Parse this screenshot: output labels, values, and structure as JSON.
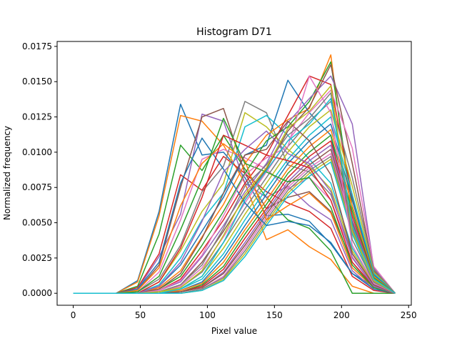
{
  "chart_data": {
    "type": "line",
    "title": "Histogram D71",
    "xlabel": "Pixel value",
    "ylabel": "Normalized frequency",
    "xlim": [
      -12,
      252
    ],
    "ylim": [
      -0.00085,
      0.01785
    ],
    "x_ticks": [
      0,
      50,
      100,
      150,
      200,
      250
    ],
    "x_tick_labels": [
      "0",
      "50",
      "100",
      "150",
      "200",
      "250"
    ],
    "y_ticks": [
      0.0,
      0.0025,
      0.005,
      0.0075,
      0.01,
      0.0125,
      0.015,
      0.0175
    ],
    "y_tick_labels": [
      "0.0000",
      "0.0025",
      "0.0050",
      "0.0075",
      "0.0100",
      "0.0125",
      "0.0150",
      "0.0175"
    ],
    "grid": false,
    "legend": "none",
    "x": [
      0,
      16,
      32,
      48,
      64,
      80,
      96,
      112,
      128,
      144,
      160,
      176,
      192,
      208,
      224,
      240
    ],
    "colors": [
      "#1f77b4",
      "#ff7f0e",
      "#2ca02c",
      "#d62728",
      "#9467bd",
      "#8c564b",
      "#e377c2",
      "#7f7f7f",
      "#bcbd22",
      "#17becf"
    ],
    "series": [
      {
        "values": [
          0,
          0,
          0,
          0.0009,
          0.0058,
          0.0134,
          0.0098,
          0.01,
          0.0082,
          0.0055,
          0.0056,
          0.0051,
          0.0035,
          0.0014,
          0.0005,
          0
        ]
      },
      {
        "values": [
          0,
          0,
          0,
          0.0008,
          0.0055,
          0.0126,
          0.0122,
          0.0105,
          0.0078,
          0.0038,
          0.0045,
          0.0033,
          0.0024,
          0.0005,
          0,
          0
        ]
      },
      {
        "values": [
          0,
          0,
          0,
          0.0005,
          0.0042,
          0.0105,
          0.0087,
          0.0112,
          0.0088,
          0.0068,
          0.0052,
          0.0046,
          0.003,
          0,
          0,
          0
        ]
      },
      {
        "values": [
          0,
          0,
          0,
          0.0004,
          0.0028,
          0.0084,
          0.0073,
          0.0097,
          0.0085,
          0.0072,
          0.0064,
          0.0058,
          0.0046,
          0.0012,
          0.0002,
          0
        ]
      },
      {
        "values": [
          0,
          0,
          0,
          0.0003,
          0.0026,
          0.0056,
          0.0127,
          0.0122,
          0.0078,
          0.0068,
          0.0076,
          0.0062,
          0.0052,
          0.0016,
          0.0003,
          0
        ]
      },
      {
        "values": [
          0,
          0,
          0,
          0.0002,
          0.002,
          0.0075,
          0.0125,
          0.0131,
          0.0085,
          0.006,
          0.0068,
          0.0072,
          0.0058,
          0.0022,
          0.0004,
          0
        ]
      },
      {
        "values": [
          0,
          0,
          0,
          0.0001,
          0.0015,
          0.0052,
          0.0095,
          0.0102,
          0.0096,
          0.0088,
          0.0074,
          0.0082,
          0.0066,
          0.0026,
          0.0005,
          0
        ]
      },
      {
        "values": [
          0,
          0,
          0,
          0.0001,
          0.001,
          0.0034,
          0.0072,
          0.009,
          0.0136,
          0.0128,
          0.0091,
          0.0086,
          0.007,
          0.0028,
          0.0006,
          0
        ]
      },
      {
        "values": [
          0,
          0,
          0,
          0,
          0.0008,
          0.003,
          0.0058,
          0.0078,
          0.0128,
          0.0118,
          0.0102,
          0.009,
          0.0074,
          0.003,
          0.0007,
          0
        ]
      },
      {
        "values": [
          0,
          0,
          0,
          0,
          0.0006,
          0.0025,
          0.0052,
          0.0071,
          0.0118,
          0.0126,
          0.0112,
          0.0095,
          0.0078,
          0.0032,
          0.0008,
          0
        ]
      },
      {
        "values": [
          0,
          0,
          0,
          0,
          0.0005,
          0.002,
          0.0044,
          0.0068,
          0.0098,
          0.0105,
          0.0151,
          0.0128,
          0.0112,
          0.0042,
          0.001,
          0
        ]
      },
      {
        "values": [
          0,
          0,
          0,
          0,
          0.0004,
          0.0016,
          0.004,
          0.0063,
          0.0092,
          0.0112,
          0.0123,
          0.0131,
          0.0169,
          0.0052,
          0.0012,
          0
        ]
      },
      {
        "values": [
          0,
          0,
          0,
          0,
          0.0003,
          0.0012,
          0.0034,
          0.0058,
          0.0085,
          0.0108,
          0.0118,
          0.0136,
          0.0164,
          0.0061,
          0.0014,
          0
        ]
      },
      {
        "values": [
          0,
          0,
          0,
          0,
          0.0002,
          0.001,
          0.003,
          0.0052,
          0.0078,
          0.0098,
          0.0126,
          0.0154,
          0.0148,
          0.0068,
          0.0015,
          0
        ]
      },
      {
        "values": [
          0,
          0,
          0,
          0,
          0.0002,
          0.0008,
          0.0026,
          0.0048,
          0.0072,
          0.0092,
          0.0121,
          0.0138,
          0.0154,
          0.012,
          0.0018,
          0
        ]
      },
      {
        "values": [
          0,
          0,
          0,
          0,
          0.0001,
          0.0006,
          0.0022,
          0.0044,
          0.0068,
          0.0088,
          0.0115,
          0.0132,
          0.0162,
          0.0092,
          0.0016,
          0
        ]
      },
      {
        "values": [
          0,
          0,
          0,
          0,
          0.0001,
          0.0005,
          0.0018,
          0.004,
          0.0064,
          0.0086,
          0.0108,
          0.0128,
          0.0144,
          0.0103,
          0.0019,
          0
        ]
      },
      {
        "values": [
          0,
          0,
          0,
          0,
          0.0001,
          0.0004,
          0.0015,
          0.0036,
          0.006,
          0.0082,
          0.0104,
          0.0122,
          0.0136,
          0.0082,
          0.0017,
          0
        ]
      },
      {
        "values": [
          0,
          0,
          0,
          0,
          0.0001,
          0.0003,
          0.0012,
          0.0032,
          0.0056,
          0.0078,
          0.01,
          0.0118,
          0.013,
          0.0076,
          0.0015,
          0
        ]
      },
      {
        "values": [
          0,
          0,
          0,
          0,
          0,
          0.0003,
          0.001,
          0.0028,
          0.0052,
          0.0074,
          0.0095,
          0.0112,
          0.0125,
          0.007,
          0.0014,
          0
        ]
      },
      {
        "values": [
          0,
          0,
          0,
          0,
          0,
          0.0002,
          0.0008,
          0.0025,
          0.0048,
          0.007,
          0.0092,
          0.0108,
          0.012,
          0.0066,
          0.0013,
          0
        ]
      },
      {
        "values": [
          0,
          0,
          0,
          0,
          0,
          0.0002,
          0.0007,
          0.0022,
          0.0045,
          0.0066,
          0.0088,
          0.0104,
          0.0116,
          0.0062,
          0.0012,
          0
        ]
      },
      {
        "values": [
          0,
          0,
          0,
          0,
          0,
          0.0001,
          0.0006,
          0.0019,
          0.0042,
          0.0063,
          0.0085,
          0.01,
          0.0112,
          0.0058,
          0.0011,
          0
        ]
      },
      {
        "values": [
          0,
          0,
          0,
          0,
          0,
          0.0001,
          0.0005,
          0.0017,
          0.0039,
          0.006,
          0.0082,
          0.0097,
          0.0108,
          0.0055,
          0.001,
          0
        ]
      },
      {
        "values": [
          0,
          0,
          0,
          0,
          0,
          0.0001,
          0.0004,
          0.0015,
          0.0036,
          0.0058,
          0.0079,
          0.0094,
          0.0105,
          0.0052,
          0.001,
          0
        ]
      },
      {
        "values": [
          0,
          0,
          0,
          0,
          0,
          0.0001,
          0.0004,
          0.0014,
          0.0034,
          0.0056,
          0.0077,
          0.0091,
          0.0102,
          0.005,
          0.0009,
          0
        ]
      },
      {
        "values": [
          0,
          0,
          0,
          0,
          0,
          0,
          0.0003,
          0.0012,
          0.0032,
          0.0054,
          0.0075,
          0.0089,
          0.0099,
          0.0048,
          0.0009,
          0
        ]
      },
      {
        "values": [
          0,
          0,
          0,
          0,
          0,
          0,
          0.0003,
          0.0011,
          0.003,
          0.0052,
          0.0073,
          0.0087,
          0.0097,
          0.0046,
          0.0008,
          0
        ]
      },
      {
        "values": [
          0,
          0,
          0,
          0,
          0,
          0,
          0.0002,
          0.001,
          0.0028,
          0.005,
          0.0071,
          0.0085,
          0.0095,
          0.0044,
          0.0008,
          0
        ]
      },
      {
        "values": [
          0,
          0,
          0,
          0,
          0,
          0,
          0.0002,
          0.0009,
          0.0026,
          0.0048,
          0.0069,
          0.0083,
          0.0093,
          0.0042,
          0.0007,
          0
        ]
      },
      {
        "values": [
          0,
          0,
          0,
          0.0003,
          0.0022,
          0.0078,
          0.011,
          0.0088,
          0.0064,
          0.0048,
          0.0051,
          0.0048,
          0.0036,
          0.0014,
          0.0003,
          0
        ]
      },
      {
        "values": [
          0,
          0,
          0,
          0.0002,
          0.0018,
          0.0062,
          0.0092,
          0.0106,
          0.0094,
          0.0052,
          0.0062,
          0.0071,
          0.0057,
          0.0018,
          0.0004,
          0
        ]
      },
      {
        "values": [
          0,
          0,
          0,
          0.0001,
          0.0012,
          0.0045,
          0.0081,
          0.0124,
          0.0092,
          0.0086,
          0.0079,
          0.0082,
          0.0061,
          0.002,
          0.0004,
          0
        ]
      },
      {
        "values": [
          0,
          0,
          0,
          0,
          0.0008,
          0.0032,
          0.0068,
          0.0112,
          0.0105,
          0.0098,
          0.0094,
          0.0089,
          0.0066,
          0.0022,
          0.0005,
          0
        ]
      },
      {
        "values": [
          0,
          0,
          0,
          0,
          0.0005,
          0.0022,
          0.0051,
          0.0086,
          0.0102,
          0.0115,
          0.0099,
          0.0092,
          0.0072,
          0.0025,
          0.0005,
          0
        ]
      },
      {
        "values": [
          0,
          0,
          0,
          0,
          0.0003,
          0.0014,
          0.0039,
          0.0071,
          0.0098,
          0.0102,
          0.0122,
          0.0108,
          0.0084,
          0.0028,
          0.0006,
          0
        ]
      },
      {
        "values": [
          0,
          0,
          0,
          0,
          0.0002,
          0.0009,
          0.0027,
          0.0055,
          0.0084,
          0.0096,
          0.0104,
          0.0154,
          0.0128,
          0.0034,
          0.0007,
          0
        ]
      },
      {
        "values": [
          0,
          0,
          0,
          0,
          0.0001,
          0.0006,
          0.002,
          0.0046,
          0.0076,
          0.0091,
          0.0112,
          0.0124,
          0.0142,
          0.0038,
          0.0008,
          0
        ]
      },
      {
        "values": [
          0,
          0,
          0,
          0,
          0.0001,
          0.0004,
          0.0016,
          0.0041,
          0.007,
          0.0089,
          0.0117,
          0.0129,
          0.0147,
          0.0044,
          0.0009,
          0
        ]
      },
      {
        "values": [
          0,
          0,
          0,
          0,
          0,
          0.0003,
          0.0012,
          0.0036,
          0.0066,
          0.0087,
          0.0108,
          0.012,
          0.0138,
          0.0048,
          0.001,
          0
        ]
      }
    ]
  }
}
